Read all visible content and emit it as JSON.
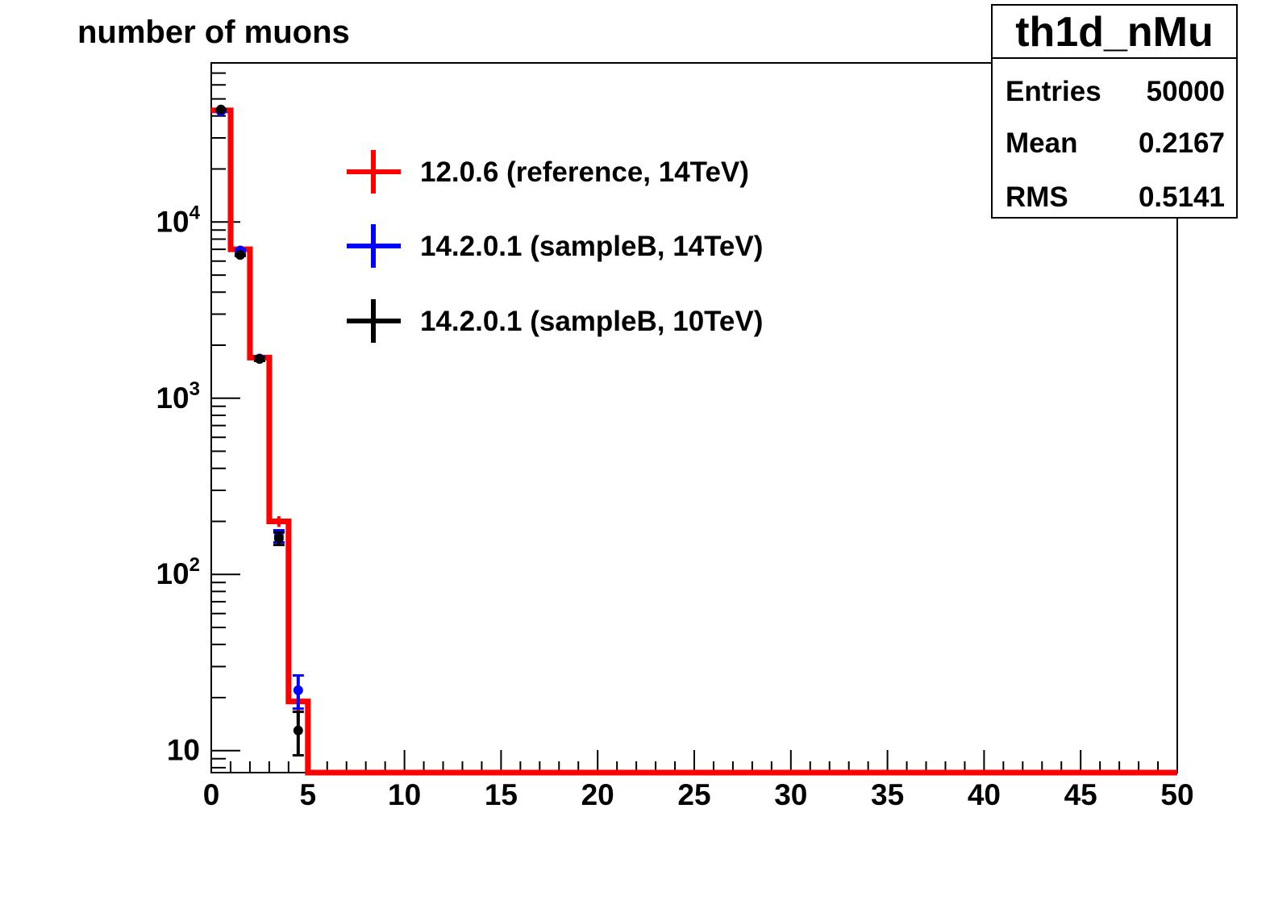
{
  "chart_data": {
    "type": "histogram",
    "title": "number of muons",
    "xlabel": "",
    "ylabel": "",
    "xlim": [
      0,
      50
    ],
    "ylim": [
      7.5,
      80000
    ],
    "yscale": "log",
    "bin_width": 1,
    "x_ticks": [
      "0",
      "5",
      "10",
      "15",
      "20",
      "25",
      "30",
      "35",
      "40",
      "45",
      "50"
    ],
    "y_ticks": [
      {
        "base": "10",
        "exp": "",
        "value": 10
      },
      {
        "base": "10",
        "exp": "2",
        "value": 100
      },
      {
        "base": "10",
        "exp": "3",
        "value": 1000
      },
      {
        "base": "10",
        "exp": "4",
        "value": 10000
      }
    ],
    "legend_position": "top-left",
    "series": [
      {
        "name": "12.0.6 (reference, 14TeV)",
        "color": "#ff0000",
        "style": "histogram",
        "x": [
          0.5,
          1.5,
          2.5,
          3.5,
          4.5
        ],
        "values": [
          43000,
          7000,
          1700,
          200,
          19
        ],
        "errors": [
          207,
          84,
          41,
          14,
          4.4
        ]
      },
      {
        "name": "14.2.0.1 (sampleB, 14TeV)",
        "color": "#0000ff",
        "style": "points",
        "x": [
          0.5,
          1.5,
          2.5,
          3.5,
          4.5
        ],
        "values": [
          42500,
          6900,
          1680,
          165,
          22
        ],
        "errors": [
          206,
          83,
          41,
          13,
          4.7
        ]
      },
      {
        "name": "14.2.0.1 (sampleB, 10TeV)",
        "color": "#000000",
        "style": "points",
        "x": [
          0.5,
          1.5,
          2.5,
          3.5,
          4.5
        ],
        "values": [
          43500,
          6500,
          1670,
          160,
          13
        ],
        "errors": [
          209,
          81,
          41,
          13,
          3.6
        ]
      }
    ]
  },
  "stats": {
    "name": "th1d_nMu",
    "rows": [
      {
        "label": "Entries",
        "value": "50000"
      },
      {
        "label": "Mean",
        "value": "0.2167"
      },
      {
        "label": "RMS",
        "value": "0.5141"
      }
    ]
  }
}
